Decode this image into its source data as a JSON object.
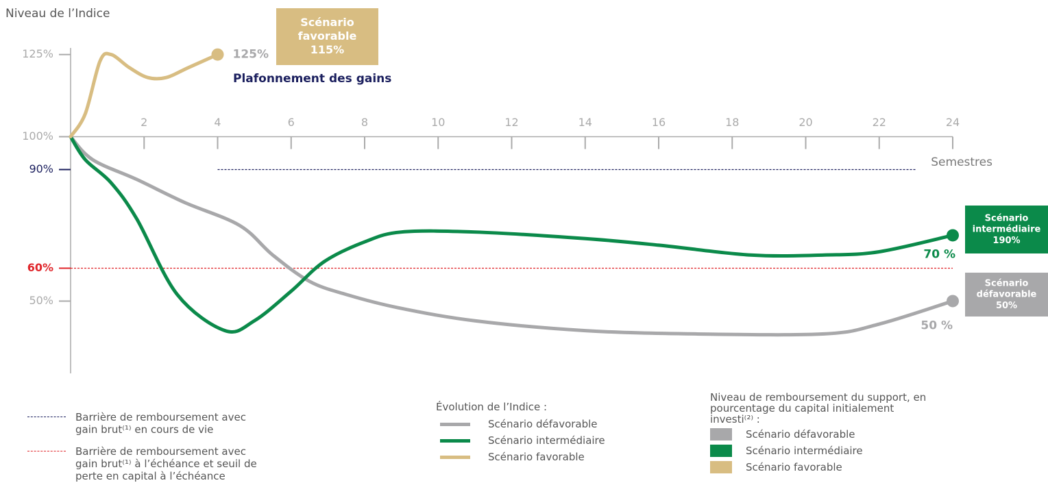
{
  "chart_data": {
    "type": "line",
    "ylabel": "Niveau de l’Indice",
    "xlabel": "Semestres",
    "annotation": "Plafonnement des gains",
    "xlim": [
      0,
      24
    ],
    "xticks": [
      2,
      4,
      6,
      8,
      10,
      12,
      14,
      16,
      18,
      20,
      22,
      24
    ],
    "ylim": [
      28,
      127
    ],
    "yticks": [
      {
        "value": 125,
        "label": "125%"
      },
      {
        "value": 100,
        "label": "100%"
      },
      {
        "value": 90,
        "label": "90%"
      },
      {
        "value": 60,
        "label": "60%"
      },
      {
        "value": 50,
        "label": "50%"
      }
    ],
    "reference_lines": [
      {
        "value": 90,
        "color": "#1b1f5e",
        "from": 4,
        "to": 23,
        "label": "Barrière de remboursement avec gain brut⁽¹⁾ en cours de vie"
      },
      {
        "value": 60,
        "color": "#e0262b",
        "from": 0,
        "to": 24,
        "label": "Barrière de remboursement avec gain brut⁽¹⁾ à l’échéance et seuil de perte en capital à l’échéance"
      }
    ],
    "legend_title": "Évolution de l’Indice :",
    "box_legend_title": "Niveau de remboursement du support, en pourcentage du capital initialement investi⁽²⁾ :",
    "series": [
      {
        "name": "Scénario défavorable",
        "color": "#a8a8aa",
        "x": [
          0,
          0.6,
          1.8,
          3.1,
          4.6,
          5.5,
          6.5,
          7.5,
          8.9,
          11,
          14,
          17,
          20.5,
          22,
          24
        ],
        "values": [
          100,
          93,
          87,
          80,
          73,
          64,
          56,
          52,
          48,
          44,
          41,
          40,
          40,
          43,
          50
        ],
        "value_labels": [
          null,
          null,
          null,
          null,
          null,
          null,
          null,
          null,
          null,
          null,
          null,
          null,
          null,
          null,
          "50 %"
        ],
        "box_lines": [
          "Scénario",
          "défavorable",
          "50%"
        ]
      },
      {
        "name": "Scénario intermédiaire",
        "color": "#0b8a4a",
        "x": [
          0,
          0.4,
          1.1,
          1.8,
          2.9,
          4.2,
          5,
          6,
          6.9,
          8,
          9,
          11,
          14,
          16,
          18.5,
          20.5,
          22,
          24
        ],
        "values": [
          100,
          93,
          86,
          75,
          52,
          41,
          44,
          53,
          62,
          68,
          71,
          71,
          69,
          67,
          64,
          64,
          65,
          70
        ],
        "value_labels": [
          null,
          null,
          null,
          null,
          null,
          null,
          null,
          null,
          null,
          null,
          null,
          null,
          null,
          null,
          null,
          null,
          null,
          "70 %"
        ],
        "box_lines": [
          "Scénario",
          "intermédiaire",
          "190%"
        ]
      },
      {
        "name": "Scénario favorable",
        "color": "#d8bd82",
        "x": [
          0,
          0.4,
          0.8,
          1.1,
          1.6,
          2.1,
          2.6,
          3.2,
          4
        ],
        "values": [
          100,
          107,
          123,
          125,
          121,
          118,
          118,
          121,
          125
        ],
        "value_labels": [
          null,
          null,
          null,
          null,
          null,
          null,
          null,
          null,
          "125%"
        ],
        "box_lines": [
          "Scénario",
          "favorable",
          "115%"
        ]
      }
    ]
  }
}
